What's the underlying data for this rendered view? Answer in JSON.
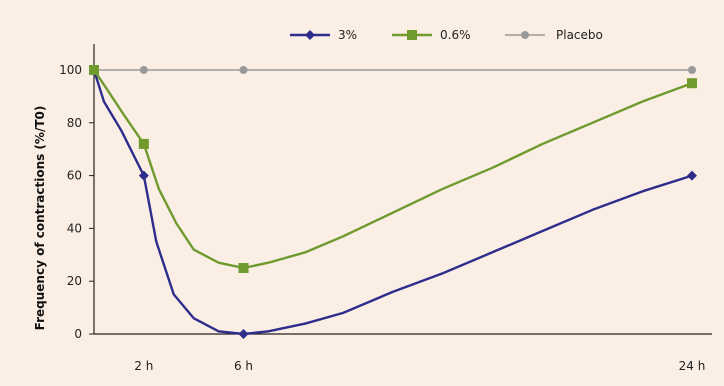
{
  "chart_data": {
    "type": "line",
    "ylabel": "Frequency of contractions (%/T0)",
    "xlabel": "",
    "x": [
      0,
      2,
      6,
      24
    ],
    "x_tick_labels": [
      {
        "x": 2,
        "label": "2 h"
      },
      {
        "x": 6,
        "label": "6 h"
      },
      {
        "x": 24,
        "label": "24 h"
      }
    ],
    "xlim": [
      0,
      24
    ],
    "ylim": [
      0,
      100
    ],
    "y_ticks": [
      0,
      20,
      40,
      60,
      80,
      100
    ],
    "grid": false,
    "legend_position": "top",
    "series": [
      {
        "name": "3%",
        "color": "#2e2d8c",
        "marker": "diamond",
        "values": [
          100,
          60,
          0,
          60
        ],
        "curve": [
          [
            0,
            100
          ],
          [
            0.4,
            88
          ],
          [
            1.1,
            77
          ],
          [
            2,
            60
          ],
          [
            2.5,
            35
          ],
          [
            3.2,
            15
          ],
          [
            4,
            6
          ],
          [
            5,
            1
          ],
          [
            6,
            0
          ],
          [
            7,
            1
          ],
          [
            8.5,
            4
          ],
          [
            10,
            8
          ],
          [
            12,
            16
          ],
          [
            14,
            23
          ],
          [
            16,
            31
          ],
          [
            18,
            39
          ],
          [
            20,
            47
          ],
          [
            22,
            54
          ],
          [
            24,
            60
          ]
        ]
      },
      {
        "name": "0.6%",
        "color": "#6e9a2e",
        "marker": "square",
        "values": [
          100,
          72,
          25,
          95
        ],
        "curve": [
          [
            0,
            100
          ],
          [
            0.5,
            93
          ],
          [
            1.2,
            83
          ],
          [
            2,
            72
          ],
          [
            2.6,
            55
          ],
          [
            3.3,
            42
          ],
          [
            4,
            32
          ],
          [
            5,
            27
          ],
          [
            6,
            25
          ],
          [
            7,
            27
          ],
          [
            8.5,
            31
          ],
          [
            10,
            37
          ],
          [
            12,
            46
          ],
          [
            14,
            55
          ],
          [
            16,
            63
          ],
          [
            18,
            72
          ],
          [
            20,
            80
          ],
          [
            22,
            88
          ],
          [
            24,
            95
          ]
        ]
      },
      {
        "name": "Placebo",
        "color": "#9a9a9a",
        "marker": "circle",
        "values": [
          100,
          100,
          100,
          100
        ],
        "curve": [
          [
            0,
            100
          ],
          [
            24,
            100
          ]
        ]
      }
    ]
  },
  "colors": {
    "background": "#fbeee4",
    "axis": "#222222"
  }
}
